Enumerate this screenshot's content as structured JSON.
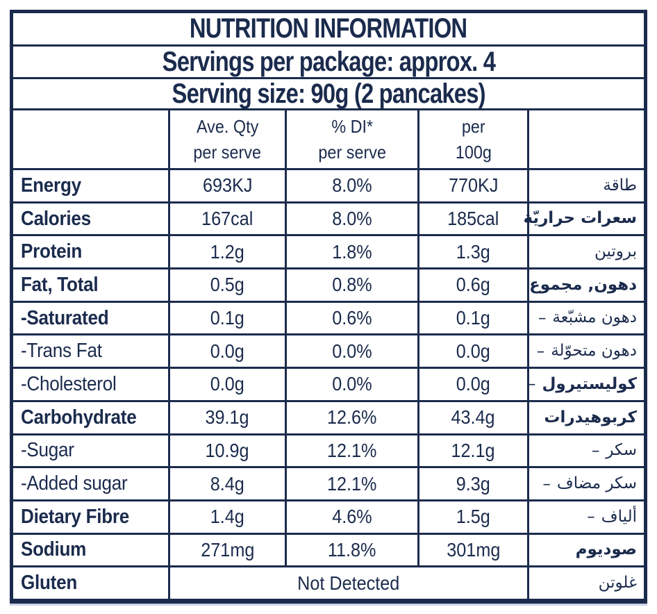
{
  "colors": {
    "navy": "#1b2b4d",
    "background": "#ffffff",
    "shadow": "#c9d3e4"
  },
  "header": {
    "title": "NUTRITION INFORMATION",
    "servings_line": "Servings per package: approx. 4",
    "serving_size_line": "Serving size: 90g (2 pancakes)"
  },
  "columns": {
    "ave_qty": {
      "line1": "Ave. Qty",
      "line2": "per serve"
    },
    "di": {
      "line1": "% DI*",
      "line2": "per serve"
    },
    "per_100g": {
      "line1": "per",
      "line2": "100g"
    }
  },
  "rows": [
    {
      "label": "Energy",
      "bold": true,
      "per_serve": "693KJ",
      "di": "8.0%",
      "per_100g": "770KJ",
      "arabic": "طاقة",
      "arabic_bold": false
    },
    {
      "label": "Calories",
      "bold": true,
      "per_serve": "167cal",
      "di": "8.0%",
      "per_100g": "185cal",
      "arabic": "سعرات حراريّة",
      "arabic_bold": true
    },
    {
      "label": "Protein",
      "bold": true,
      "per_serve": "1.2g",
      "di": "1.8%",
      "per_100g": "1.3g",
      "arabic": "بروتين",
      "arabic_bold": false
    },
    {
      "label": "Fat, Total",
      "bold": true,
      "per_serve": "0.5g",
      "di": "0.8%",
      "per_100g": "0.6g",
      "arabic": "دهون, مجموع",
      "arabic_bold": true
    },
    {
      "label": "-Saturated",
      "bold": true,
      "per_serve": "0.1g",
      "di": "0.6%",
      "per_100g": "0.1g",
      "arabic": "دهون مشبّعة",
      "arabic_bold": false,
      "arabic_dash": "–"
    },
    {
      "label": "-Trans Fat",
      "bold": false,
      "per_serve": "0.0g",
      "di": "0.0%",
      "per_100g": "0.0g",
      "arabic": "دهون متحوّلة",
      "arabic_bold": false,
      "arabic_dash": "–"
    },
    {
      "label": "-Cholesterol",
      "bold": false,
      "per_serve": "0.0g",
      "di": "0.0%",
      "per_100g": "0.0g",
      "arabic": "كوليستيرول",
      "arabic_bold": true,
      "arabic_dash": "–"
    },
    {
      "label": "Carbohydrate",
      "bold": true,
      "per_serve": "39.1g",
      "di": "12.6%",
      "per_100g": "43.4g",
      "arabic": "كربوهيدرات",
      "arabic_bold": true
    },
    {
      "label": "-Sugar",
      "bold": false,
      "per_serve": "10.9g",
      "di": "12.1%",
      "per_100g": "12.1g",
      "arabic": "سكر",
      "arabic_bold": false,
      "arabic_dash": "–"
    },
    {
      "label": "-Added sugar",
      "bold": false,
      "per_serve": "8.4g",
      "di": "12.1%",
      "per_100g": "9.3g",
      "arabic": "سكر مضاف",
      "arabic_bold": false,
      "arabic_dash": "–"
    },
    {
      "label": "Dietary Fibre",
      "bold": true,
      "per_serve": "1.4g",
      "di": "4.6%",
      "per_100g": "1.5g",
      "arabic": "ألياف",
      "arabic_bold": false,
      "arabic_dash": "–"
    },
    {
      "label": "Sodium",
      "bold": true,
      "per_serve": "271mg",
      "di": "11.8%",
      "per_100g": "301mg",
      "arabic": "صوديوم",
      "arabic_bold": true
    },
    {
      "label": "Gluten",
      "bold": true,
      "values_span": "Not Detected",
      "arabic": "غلوتن",
      "arabic_bold": false
    }
  ]
}
